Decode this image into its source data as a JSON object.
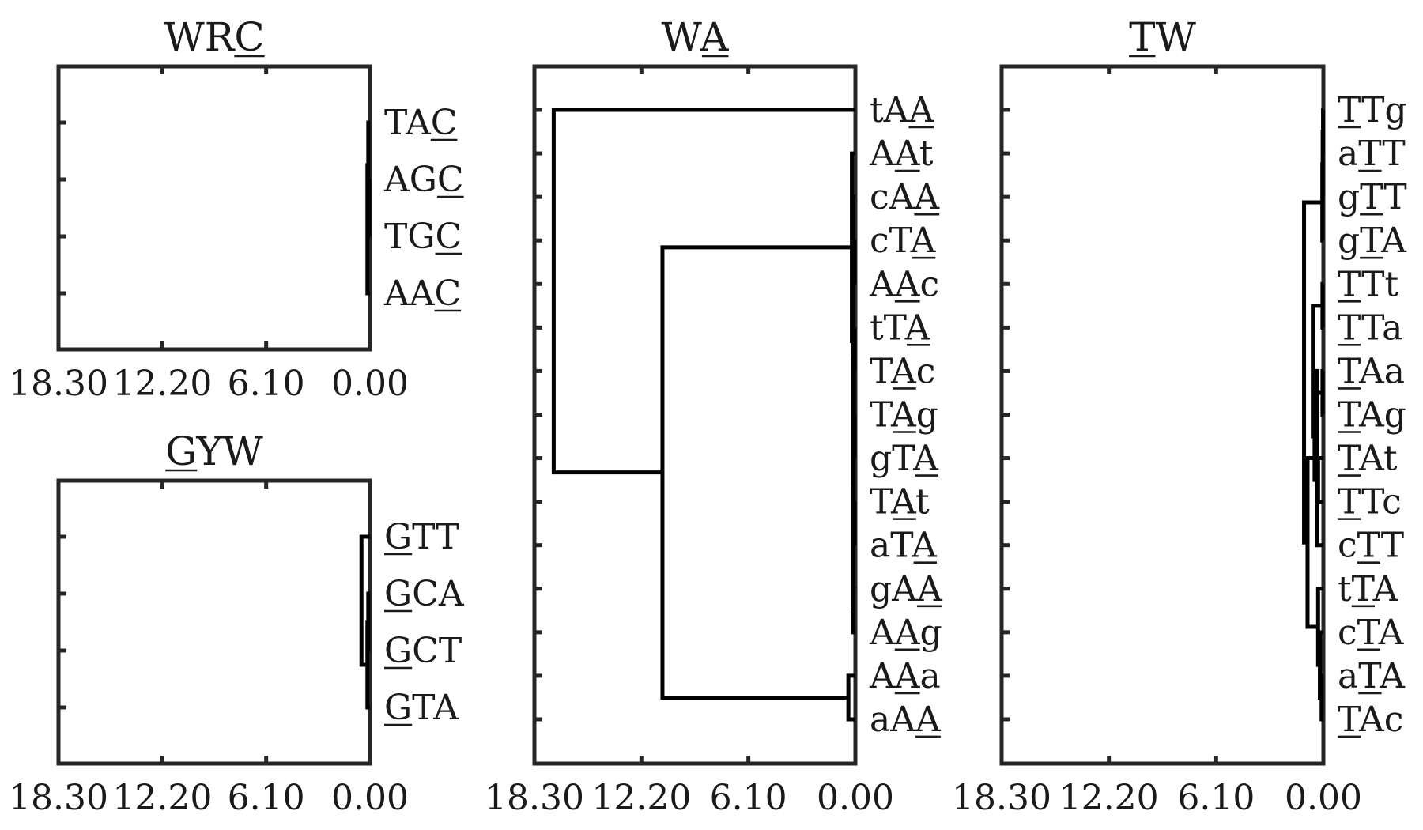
{
  "chart_data": [
    {
      "type": "dendrogram",
      "title": "WRC",
      "title_underline": [
        2
      ],
      "xlim": [
        18.3,
        0
      ],
      "xticks": [
        "18.30",
        "12.20",
        "6.10",
        "0.00"
      ],
      "leaves": [
        {
          "label": "TAC",
          "underline": [
            2
          ]
        },
        {
          "label": "AGC",
          "underline": [
            2
          ]
        },
        {
          "label": "TGC",
          "underline": [
            2
          ]
        },
        {
          "label": "AAC",
          "underline": [
            2
          ]
        }
      ],
      "links": [
        {
          "height": 0.05,
          "left": 1,
          "right": 2
        },
        {
          "height": 0.1,
          "left": 0,
          "right": "c1"
        },
        {
          "height": 0.15,
          "left": "c2",
          "right": 3
        }
      ]
    },
    {
      "type": "dendrogram",
      "title": "GYW",
      "title_underline": [
        0
      ],
      "xlim": [
        18.3,
        0
      ],
      "xticks": [
        "18.30",
        "12.20",
        "6.10",
        "0.00"
      ],
      "leaves": [
        {
          "label": "GTT",
          "underline": [
            0
          ]
        },
        {
          "label": "GCA",
          "underline": [
            0
          ]
        },
        {
          "label": "GCT",
          "underline": [
            0
          ]
        },
        {
          "label": "GTA",
          "underline": [
            0
          ]
        }
      ],
      "links": [
        {
          "height": 0.1,
          "left": 1,
          "right": 2
        },
        {
          "height": 0.15,
          "left": "c1",
          "right": 3
        },
        {
          "height": 0.5,
          "left": 0,
          "right": "c2"
        }
      ]
    },
    {
      "type": "dendrogram",
      "title": "WA",
      "title_underline": [
        1
      ],
      "xlim": [
        18.3,
        0
      ],
      "xticks": [
        "18.30",
        "12.20",
        "6.10",
        "0.00"
      ],
      "leaves": [
        {
          "label": "tAA",
          "underline": [
            2
          ]
        },
        {
          "label": "AAt",
          "underline": [
            1
          ]
        },
        {
          "label": "cAA",
          "underline": [
            2
          ]
        },
        {
          "label": "cTA",
          "underline": [
            2
          ]
        },
        {
          "label": "AAc",
          "underline": [
            1
          ]
        },
        {
          "label": "tTA",
          "underline": [
            2
          ]
        },
        {
          "label": "TAc",
          "underline": [
            1
          ]
        },
        {
          "label": "TAg",
          "underline": [
            1
          ]
        },
        {
          "label": "gTA",
          "underline": [
            2
          ]
        },
        {
          "label": "TAt",
          "underline": [
            1
          ]
        },
        {
          "label": "aTA",
          "underline": [
            2
          ]
        },
        {
          "label": "gAA",
          "underline": [
            2
          ]
        },
        {
          "label": "AAg",
          "underline": [
            1
          ]
        },
        {
          "label": "AAa",
          "underline": [
            1
          ]
        },
        {
          "label": "aAA",
          "underline": [
            2
          ]
        }
      ],
      "links": [
        {
          "height": 0.05,
          "left": 5,
          "right": 6
        },
        {
          "height": 0.05,
          "left": 7,
          "right": 8
        },
        {
          "height": 0.08,
          "left": "c1",
          "right": "c2"
        },
        {
          "height": 0.05,
          "left": 9,
          "right": 10
        },
        {
          "height": 0.1,
          "left": "c3",
          "right": "c4"
        },
        {
          "height": 0.05,
          "left": 3,
          "right": 4
        },
        {
          "height": 0.12,
          "left": "c6",
          "right": "c5"
        },
        {
          "height": 0.12,
          "left": 11,
          "right": 12
        },
        {
          "height": 0.15,
          "left": "c7",
          "right": "c8"
        },
        {
          "height": 0.15,
          "left": 2,
          "right": "c9"
        },
        {
          "height": 0.2,
          "left": 1,
          "right": "c10"
        },
        {
          "height": 0.4,
          "left": 13,
          "right": 14
        },
        {
          "height": 11.0,
          "left": "c11",
          "right": "c12"
        },
        {
          "height": 17.2,
          "left": 0,
          "right": "c13"
        }
      ]
    },
    {
      "type": "dendrogram",
      "title": "TW",
      "title_underline": [
        0
      ],
      "xlim": [
        18.3,
        0
      ],
      "xticks": [
        "18.30",
        "12.20",
        "6.10",
        "0.00"
      ],
      "leaves": [
        {
          "label": "TTg",
          "underline": [
            0
          ]
        },
        {
          "label": "aTT",
          "underline": [
            1
          ]
        },
        {
          "label": "gTT",
          "underline": [
            1
          ]
        },
        {
          "label": "gTA",
          "underline": [
            1
          ]
        },
        {
          "label": "TTt",
          "underline": [
            0
          ]
        },
        {
          "label": "TTa",
          "underline": [
            0
          ]
        },
        {
          "label": "TAa",
          "underline": [
            0
          ]
        },
        {
          "label": "TAg",
          "underline": [
            0
          ]
        },
        {
          "label": "TAt",
          "underline": [
            0
          ]
        },
        {
          "label": "TTc",
          "underline": [
            0
          ]
        },
        {
          "label": "cTT",
          "underline": [
            1
          ]
        },
        {
          "label": "tTA",
          "underline": [
            1
          ]
        },
        {
          "label": "cTA",
          "underline": [
            1
          ]
        },
        {
          "label": "aTA",
          "underline": [
            1
          ]
        },
        {
          "label": "TAc",
          "underline": [
            0
          ]
        }
      ],
      "links": [
        {
          "height": 0.02,
          "left": 0,
          "right": 1
        },
        {
          "height": 0.04,
          "left": "c1",
          "right": 2
        },
        {
          "height": 0.06,
          "left": "c2",
          "right": 3
        },
        {
          "height": 0.05,
          "left": 4,
          "right": 5
        },
        {
          "height": 0.05,
          "left": 6,
          "right": 7
        },
        {
          "height": 0.3,
          "left": 8,
          "right": 9
        },
        {
          "height": 0.5,
          "left": "c5",
          "right": "c6"
        },
        {
          "height": 0.6,
          "left": "c4",
          "right": "c7"
        },
        {
          "height": 0.35,
          "left": "c8",
          "right": 10
        },
        {
          "height": 0.1,
          "left": 13,
          "right": 14
        },
        {
          "height": 0.2,
          "left": 12,
          "right": "c10"
        },
        {
          "height": 0.3,
          "left": 11,
          "right": "c11"
        },
        {
          "height": 0.9,
          "left": "c9",
          "right": "c12"
        },
        {
          "height": 1.1,
          "left": "c3",
          "right": "c13"
        }
      ]
    }
  ]
}
